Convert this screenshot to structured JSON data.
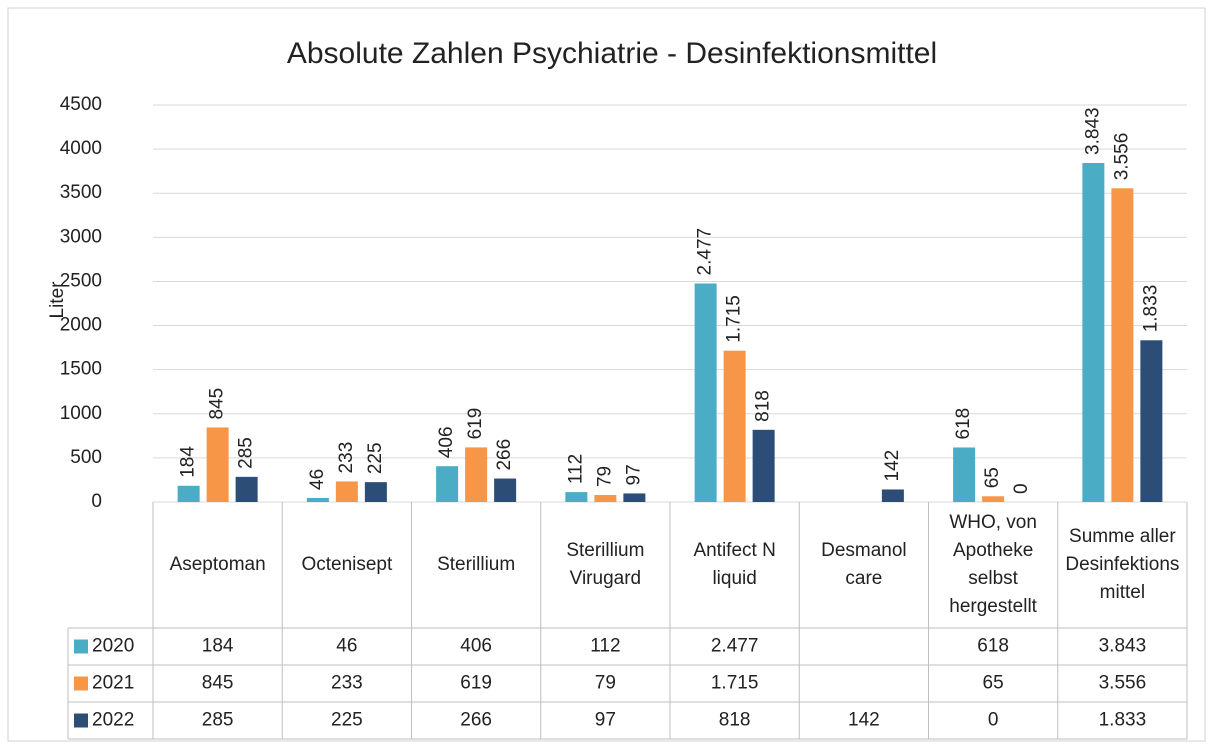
{
  "chart_data": {
    "type": "bar",
    "title": "Absolute Zahlen Psychiatrie - Desinfektionsmittel",
    "y_label": "Liter",
    "categories": [
      "Aseptoman",
      "Octenisept",
      "Sterillium",
      "Sterillium Virugard",
      "Antifect N liquid",
      "Desmanol care",
      "WHO, von Apotheke selbst hergestellt",
      "Summe aller Desinfektionsmittel"
    ],
    "series": [
      {
        "name": "2020",
        "color": "#4bacc6",
        "values": [
          184,
          46,
          406,
          112,
          2477,
          null,
          618,
          3843
        ],
        "value_labels": [
          "184",
          "46",
          "406",
          "112",
          "2.477",
          null,
          "618",
          "3.843"
        ]
      },
      {
        "name": "2021",
        "color": "#f79646",
        "values": [
          845,
          233,
          619,
          79,
          1715,
          null,
          65,
          3556
        ],
        "value_labels": [
          "845",
          "233",
          "619",
          "79",
          "1.715",
          null,
          "65",
          "3.556"
        ]
      },
      {
        "name": "2022",
        "color": "#2c4d75",
        "values": [
          285,
          225,
          266,
          97,
          818,
          142,
          0,
          1833
        ],
        "value_labels": [
          "285",
          "225",
          "266",
          "97",
          "818",
          "142",
          "0",
          "1.833"
        ]
      }
    ],
    "ylim": [
      0,
      4500
    ],
    "yticks": [
      0,
      500,
      1000,
      1500,
      2000,
      2500,
      3000,
      3500,
      4000,
      4500
    ],
    "grid": true
  }
}
